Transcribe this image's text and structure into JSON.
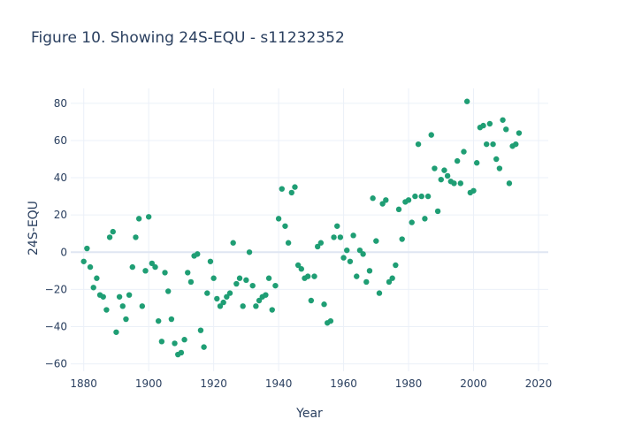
{
  "chart_data": {
    "type": "scatter",
    "title": "Figure 10. Showing 24S-EQU - s11232352",
    "xlabel": "Year",
    "ylabel": "24S-EQU",
    "xlim": [
      1876,
      2023
    ],
    "ylim": [
      -64,
      88
    ],
    "xticks": [
      1880,
      1900,
      1920,
      1940,
      1960,
      1980,
      2000,
      2020
    ],
    "yticks": [
      -60,
      -40,
      -20,
      0,
      20,
      40,
      60,
      80
    ],
    "grid": true,
    "marker_color": "#1f9e74",
    "x": [
      1880,
      1881,
      1882,
      1883,
      1884,
      1885,
      1886,
      1887,
      1888,
      1889,
      1890,
      1891,
      1892,
      1893,
      1894,
      1895,
      1896,
      1897,
      1898,
      1899,
      1900,
      1901,
      1902,
      1903,
      1904,
      1905,
      1906,
      1907,
      1908,
      1909,
      1910,
      1911,
      1912,
      1913,
      1914,
      1915,
      1916,
      1917,
      1918,
      1919,
      1920,
      1921,
      1922,
      1923,
      1924,
      1925,
      1926,
      1927,
      1928,
      1929,
      1930,
      1931,
      1932,
      1933,
      1934,
      1935,
      1936,
      1937,
      1938,
      1939,
      1940,
      1941,
      1942,
      1943,
      1944,
      1945,
      1946,
      1947,
      1948,
      1949,
      1950,
      1951,
      1952,
      1953,
      1954,
      1955,
      1956,
      1957,
      1958,
      1959,
      1960,
      1961,
      1962,
      1963,
      1964,
      1965,
      1966,
      1967,
      1968,
      1969,
      1970,
      1971,
      1972,
      1973,
      1974,
      1975,
      1976,
      1977,
      1978,
      1979,
      1980,
      1981,
      1982,
      1983,
      1984,
      1985,
      1986,
      1987,
      1988,
      1989,
      1990,
      1991,
      1992,
      1993,
      1994,
      1995,
      1996,
      1997,
      1998,
      1999,
      2000,
      2001,
      2002,
      2003,
      2004,
      2005,
      2006,
      2007,
      2008,
      2009,
      2010,
      2011,
      2012,
      2013,
      2014
    ],
    "y": [
      -5,
      2,
      -8,
      -19,
      -14,
      -23,
      -24,
      -31,
      8,
      11,
      -43,
      -24,
      -29,
      -36,
      -23,
      -8,
      8,
      18,
      -29,
      -10,
      19,
      -6,
      -8,
      -37,
      -48,
      -11,
      -21,
      -36,
      -49,
      -55,
      -54,
      -47,
      -11,
      -16,
      -2,
      -1,
      -42,
      -51,
      -22,
      -5,
      -14,
      -25,
      -29,
      -27,
      -24,
      -22,
      5,
      -17,
      -14,
      -29,
      -15,
      0,
      -18,
      -29,
      -26,
      -24,
      -23,
      -14,
      -31,
      -18,
      18,
      34,
      14,
      5,
      32,
      35,
      -7,
      -9,
      -14,
      -13,
      -26,
      -13,
      3,
      5,
      -28,
      -38,
      -37,
      8,
      14,
      8,
      -3,
      1,
      -5,
      9,
      -13,
      1,
      -1,
      -16,
      -10,
      29,
      6,
      -22,
      26,
      28,
      -16,
      -14,
      -7,
      23,
      7,
      27,
      28,
      16,
      30,
      58,
      30,
      18,
      30,
      63,
      45,
      22,
      39,
      44,
      41,
      38,
      37,
      49,
      37,
      54,
      81,
      32,
      33,
      48,
      67,
      68,
      58,
      69,
      58,
      50,
      45,
      71,
      66,
      37,
      57,
      58,
      64
    ]
  }
}
